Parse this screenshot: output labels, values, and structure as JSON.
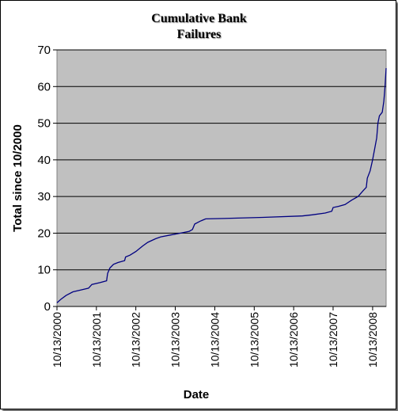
{
  "chart_data": {
    "type": "line",
    "title": "Cumulative Bank\nFailures",
    "xlabel": "Date",
    "ylabel": "Total since 10/2000",
    "ylim": [
      0,
      70
    ],
    "yticks": [
      0,
      10,
      20,
      30,
      40,
      50,
      60,
      70
    ],
    "xticks": [
      "10/13/2000",
      "10/13/2001",
      "10/13/2002",
      "10/13/2003",
      "10/13/2004",
      "10/13/2005",
      "10/13/2006",
      "10/13/2007",
      "10/13/2008"
    ],
    "xlim": [
      "2000-10-13",
      "2009-02-15"
    ],
    "grid": "horizontal",
    "plot_background": "#c0c0c0",
    "line_color": "#000080",
    "series": [
      {
        "name": "",
        "points": [
          [
            "2000-10-13",
            1
          ],
          [
            "2000-11-20",
            2
          ],
          [
            "2001-01-05",
            3
          ],
          [
            "2001-03-10",
            4
          ],
          [
            "2001-05-20",
            4.5
          ],
          [
            "2001-08-01",
            5
          ],
          [
            "2001-09-01",
            6
          ],
          [
            "2001-11-15",
            6.5
          ],
          [
            "2002-01-15",
            7
          ],
          [
            "2002-01-25",
            9
          ],
          [
            "2002-02-15",
            10.5
          ],
          [
            "2002-03-20",
            11.5
          ],
          [
            "2002-05-01",
            12
          ],
          [
            "2002-07-01",
            12.5
          ],
          [
            "2002-07-10",
            13.5
          ],
          [
            "2002-08-20",
            14
          ],
          [
            "2002-10-13",
            15
          ],
          [
            "2002-12-15",
            16.5
          ],
          [
            "2003-02-01",
            17.5
          ],
          [
            "2003-04-15",
            18.5
          ],
          [
            "2003-06-01",
            19
          ],
          [
            "2003-09-01",
            19.5
          ],
          [
            "2003-12-01",
            20
          ],
          [
            "2004-02-20",
            20.5
          ],
          [
            "2004-03-20",
            21
          ],
          [
            "2004-04-10",
            22.5
          ],
          [
            "2004-06-01",
            23.3
          ],
          [
            "2004-07-20",
            23.9
          ],
          [
            "2005-01-01",
            24
          ],
          [
            "2006-01-01",
            24.3
          ],
          [
            "2007-01-01",
            24.7
          ],
          [
            "2007-04-01",
            25
          ],
          [
            "2007-08-01",
            25.5
          ],
          [
            "2007-10-01",
            26
          ],
          [
            "2007-10-13",
            27
          ],
          [
            "2007-12-01",
            27.3
          ],
          [
            "2008-02-01",
            27.8
          ],
          [
            "2008-04-01",
            29
          ],
          [
            "2008-06-01",
            30
          ],
          [
            "2008-07-15",
            31.5
          ],
          [
            "2008-08-15",
            32.5
          ],
          [
            "2008-08-25",
            35
          ],
          [
            "2008-09-20",
            37
          ],
          [
            "2008-10-13",
            40
          ],
          [
            "2008-11-01",
            43
          ],
          [
            "2008-11-20",
            46
          ],
          [
            "2008-12-01",
            50
          ],
          [
            "2008-12-15",
            52
          ],
          [
            "2009-01-10",
            53
          ],
          [
            "2009-01-25",
            56
          ],
          [
            "2009-02-05",
            60
          ],
          [
            "2009-02-15",
            65
          ]
        ]
      }
    ]
  }
}
